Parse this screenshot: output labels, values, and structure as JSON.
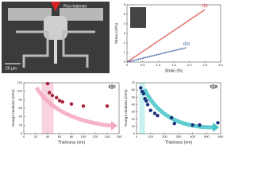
{
  "image_panel": {
    "label": "Pico-Indenter",
    "scale_bar": "20 μm"
  },
  "chart_data": [
    {
      "type": "line",
      "xlabel": "Strain (%)",
      "ylabel": "Stress (GPa)",
      "xlim": [
        0,
        3
      ],
      "xticks": [
        0,
        0.5,
        {
          "value": 1,
          "label": "1.0"
        },
        1.5,
        {
          "value": 2,
          "label": "2.0"
        },
        2.5,
        {
          "value": 3,
          "label": "3.0"
        }
      ],
      "ylim": [
        0,
        6
      ],
      "yticks": [
        0,
        1,
        2,
        3,
        4,
        5,
        6
      ],
      "series": [
        {
          "name": "ε||c",
          "color": "#d42a2a",
          "x": [
            0,
            0.5,
            1,
            1.5,
            2,
            2.5
          ],
          "values": [
            0,
            1.1,
            2.2,
            3.3,
            4.4,
            5.5
          ]
        },
        {
          "name": "ε||a",
          "color": "#2a4ea8",
          "x": [
            0,
            0.5,
            1,
            1.5,
            1.9
          ],
          "values": [
            0,
            0.4,
            0.8,
            1.2,
            1.5
          ]
        }
      ]
    },
    {
      "type": "scatter",
      "title": "ε||c",
      "xlabel": "Thickness (nm)",
      "ylabel": "Young's modulus (GPa)",
      "xlim": [
        0,
        160
      ],
      "xticks": [
        0,
        20,
        40,
        60,
        80,
        100,
        120,
        140,
        160
      ],
      "ylim": [
        0,
        120
      ],
      "yticks": [
        0,
        20,
        40,
        60,
        80,
        100,
        120
      ],
      "highlight_xrange": [
        30,
        50
      ],
      "highlight_color": "#f8c8d6",
      "arrow_color": "#f4a7bf",
      "series": [
        {
          "color": "#a3203a",
          "x": [
            40,
            43,
            48,
            55,
            60,
            65,
            80,
            100,
            140
          ],
          "values": [
            118,
            97,
            90,
            85,
            78,
            75,
            70,
            65,
            65
          ]
        }
      ]
    },
    {
      "type": "scatter",
      "title": "ε||a",
      "xlabel": "Thickness (nm)",
      "ylabel": "Young's modulus (GPa)",
      "xlim": [
        0,
        600
      ],
      "xticks": [
        0,
        100,
        200,
        300,
        400,
        500,
        600
      ],
      "ylim": [
        0,
        70
      ],
      "yticks": [
        0,
        10,
        20,
        30,
        40,
        50,
        60,
        70
      ],
      "highlight_xrange": [
        20,
        60
      ],
      "highlight_color": "#bdeeee",
      "arrow_color": "#45c4c8",
      "series": [
        {
          "color": "#1c2f7c",
          "x": [
            30,
            40,
            50,
            60,
            70,
            80,
            100,
            130,
            150,
            250,
            270,
            400,
            450,
            580
          ],
          "values": [
            63,
            58,
            55,
            48,
            45,
            40,
            32,
            28,
            25,
            22,
            14,
            12,
            12,
            15
          ]
        }
      ]
    }
  ]
}
